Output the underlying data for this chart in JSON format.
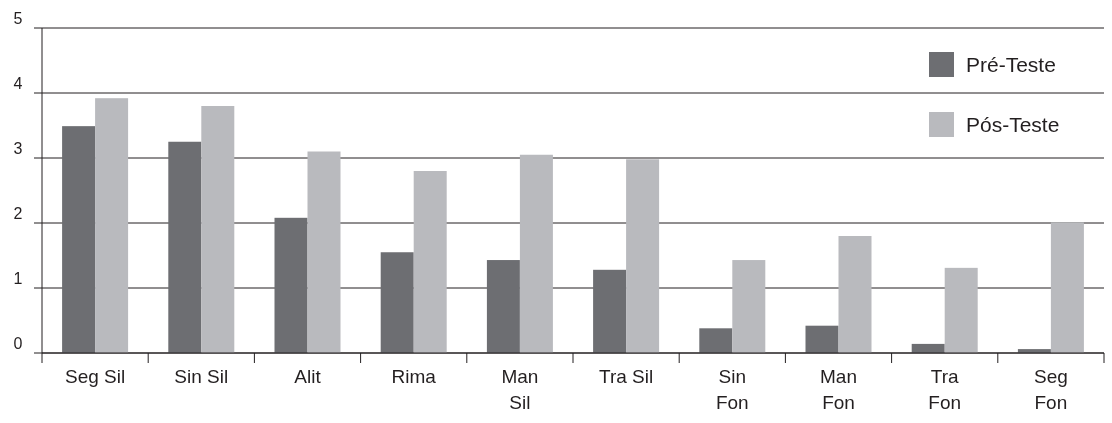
{
  "chart_data": {
    "type": "bar",
    "categories": [
      "Seg Sil",
      "Sin Sil",
      "Alit",
      "Rima",
      "Man\nSil",
      "Tra Sil",
      "Sin\nFon",
      "Man\nFon",
      "Tra\nFon",
      "Seg\nFon"
    ],
    "series": [
      {
        "name": "Pré-Teste",
        "color": "#6d6e72",
        "values": [
          3.49,
          3.25,
          2.08,
          1.55,
          1.43,
          1.28,
          0.38,
          0.42,
          0.14,
          0.06
        ]
      },
      {
        "name": "Pós-Teste",
        "color": "#b9babe",
        "values": [
          3.92,
          3.8,
          3.1,
          2.8,
          3.05,
          2.98,
          1.43,
          1.8,
          1.31,
          2.01
        ]
      }
    ],
    "ylim": [
      0,
      5
    ],
    "yticks": [
      0,
      1,
      2,
      3,
      4,
      5
    ],
    "grid": "y",
    "legend": "top right"
  }
}
